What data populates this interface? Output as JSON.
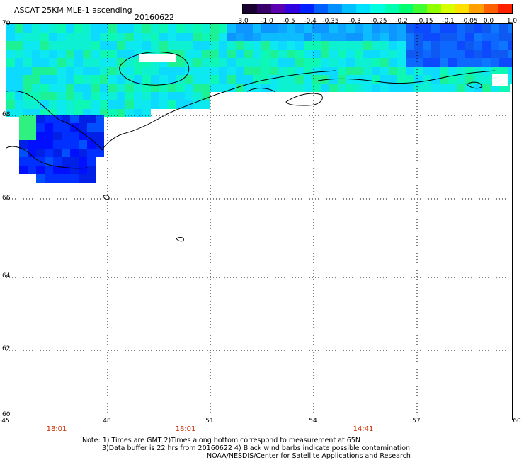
{
  "header": {
    "title": "ASCAT 25KM MLE-1 ascending",
    "date": "20160622"
  },
  "colorbar": {
    "labels": [
      "-3.0",
      "-1.0",
      "-0.5",
      "-0.4",
      "-0.35",
      "-0.3",
      "-0.25",
      "-0.2",
      "-0.15",
      "-0.1",
      "-0.05",
      "0.0",
      "1.0"
    ],
    "colors": [
      "#1a0030",
      "#3a006a",
      "#5a00b0",
      "#3000e0",
      "#0020ff",
      "#0060ff",
      "#0090ff",
      "#00c0ff",
      "#00e0ff",
      "#00ffe0",
      "#00ffb0",
      "#00ff70",
      "#40ff30",
      "#90ff00",
      "#d8ff00",
      "#ffe000",
      "#ffa000",
      "#ff6000",
      "#ff2000"
    ]
  },
  "map": {
    "lat_labels": [
      "70",
      "68",
      "66",
      "64",
      "62",
      "60"
    ],
    "lon_labels": [
      "45",
      "48",
      "51",
      "54",
      "57",
      "60"
    ],
    "time_labels": [
      "18:01",
      "18:01",
      "14:41"
    ]
  },
  "notes": {
    "line1": "Note: 1) Times are GMT 2)Times along bottom correspond to measurement at 65N",
    "line2": "3)Data buffer is 22 hrs from 20160622 4) Black wind barbs indicate possible contamination",
    "line3": "NOAA/NESDIS/Center for Satellite Applications and Research"
  }
}
